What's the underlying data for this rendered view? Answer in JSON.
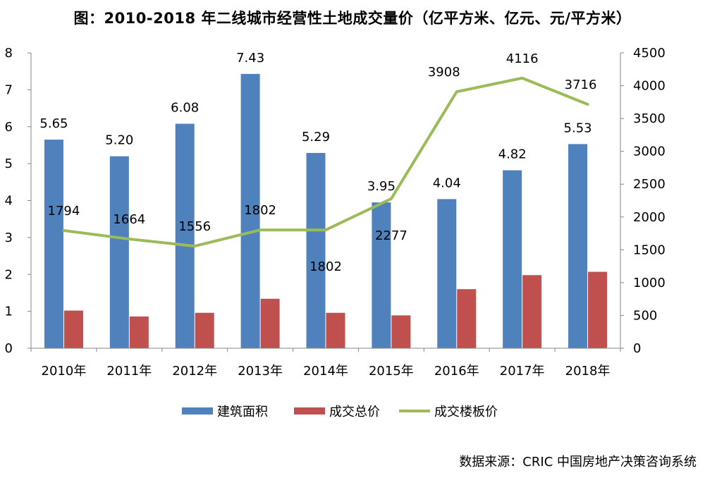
{
  "chart_data": {
    "type": "bar",
    "title": "图：2010-2018 年二线城市经营性土地成交量价（亿平方米、亿元、元/平方米）",
    "categories": [
      "2010年",
      "2011年",
      "2012年",
      "2013年",
      "2014年",
      "2015年",
      "2016年",
      "2017年",
      "2018年"
    ],
    "series": [
      {
        "name": "建筑面积",
        "type": "bar",
        "axis": "left",
        "color": "#4f81bd",
        "values": [
          5.65,
          5.2,
          6.08,
          7.43,
          5.29,
          3.95,
          4.04,
          4.82,
          5.53
        ],
        "labels": [
          "5.65",
          "5.20",
          "6.08",
          "7.43",
          "5.29",
          "3.95",
          "4.04",
          "4.82",
          "5.53"
        ]
      },
      {
        "name": "成交总价",
        "type": "bar",
        "axis": "left",
        "color": "#c0504d",
        "values": [
          1.02,
          0.86,
          0.96,
          1.34,
          0.96,
          0.89,
          1.6,
          1.98,
          2.07
        ]
      },
      {
        "name": "成交楼板价",
        "type": "line",
        "axis": "right",
        "color": "#9bbb59",
        "values": [
          1794,
          1664,
          1556,
          1802,
          1802,
          2277,
          3908,
          4116,
          3716
        ],
        "labels": [
          "1794",
          "1664",
          "1556",
          "1802",
          "1802",
          "2277",
          "3908",
          "4116",
          "3716"
        ]
      }
    ],
    "y_left": {
      "min": 0,
      "max": 8,
      "step": 1,
      "ticks": [
        "0",
        "1",
        "2",
        "3",
        "4",
        "5",
        "6",
        "7",
        "8"
      ]
    },
    "y_right": {
      "min": 0,
      "max": 4500,
      "step": 500,
      "ticks": [
        "0",
        "500",
        "1000",
        "1500",
        "2000",
        "2500",
        "3000",
        "3500",
        "4000",
        "4500"
      ]
    },
    "legend_position": "bottom",
    "source": "数据来源：CRIC 中国房地产决策咨询系统"
  }
}
